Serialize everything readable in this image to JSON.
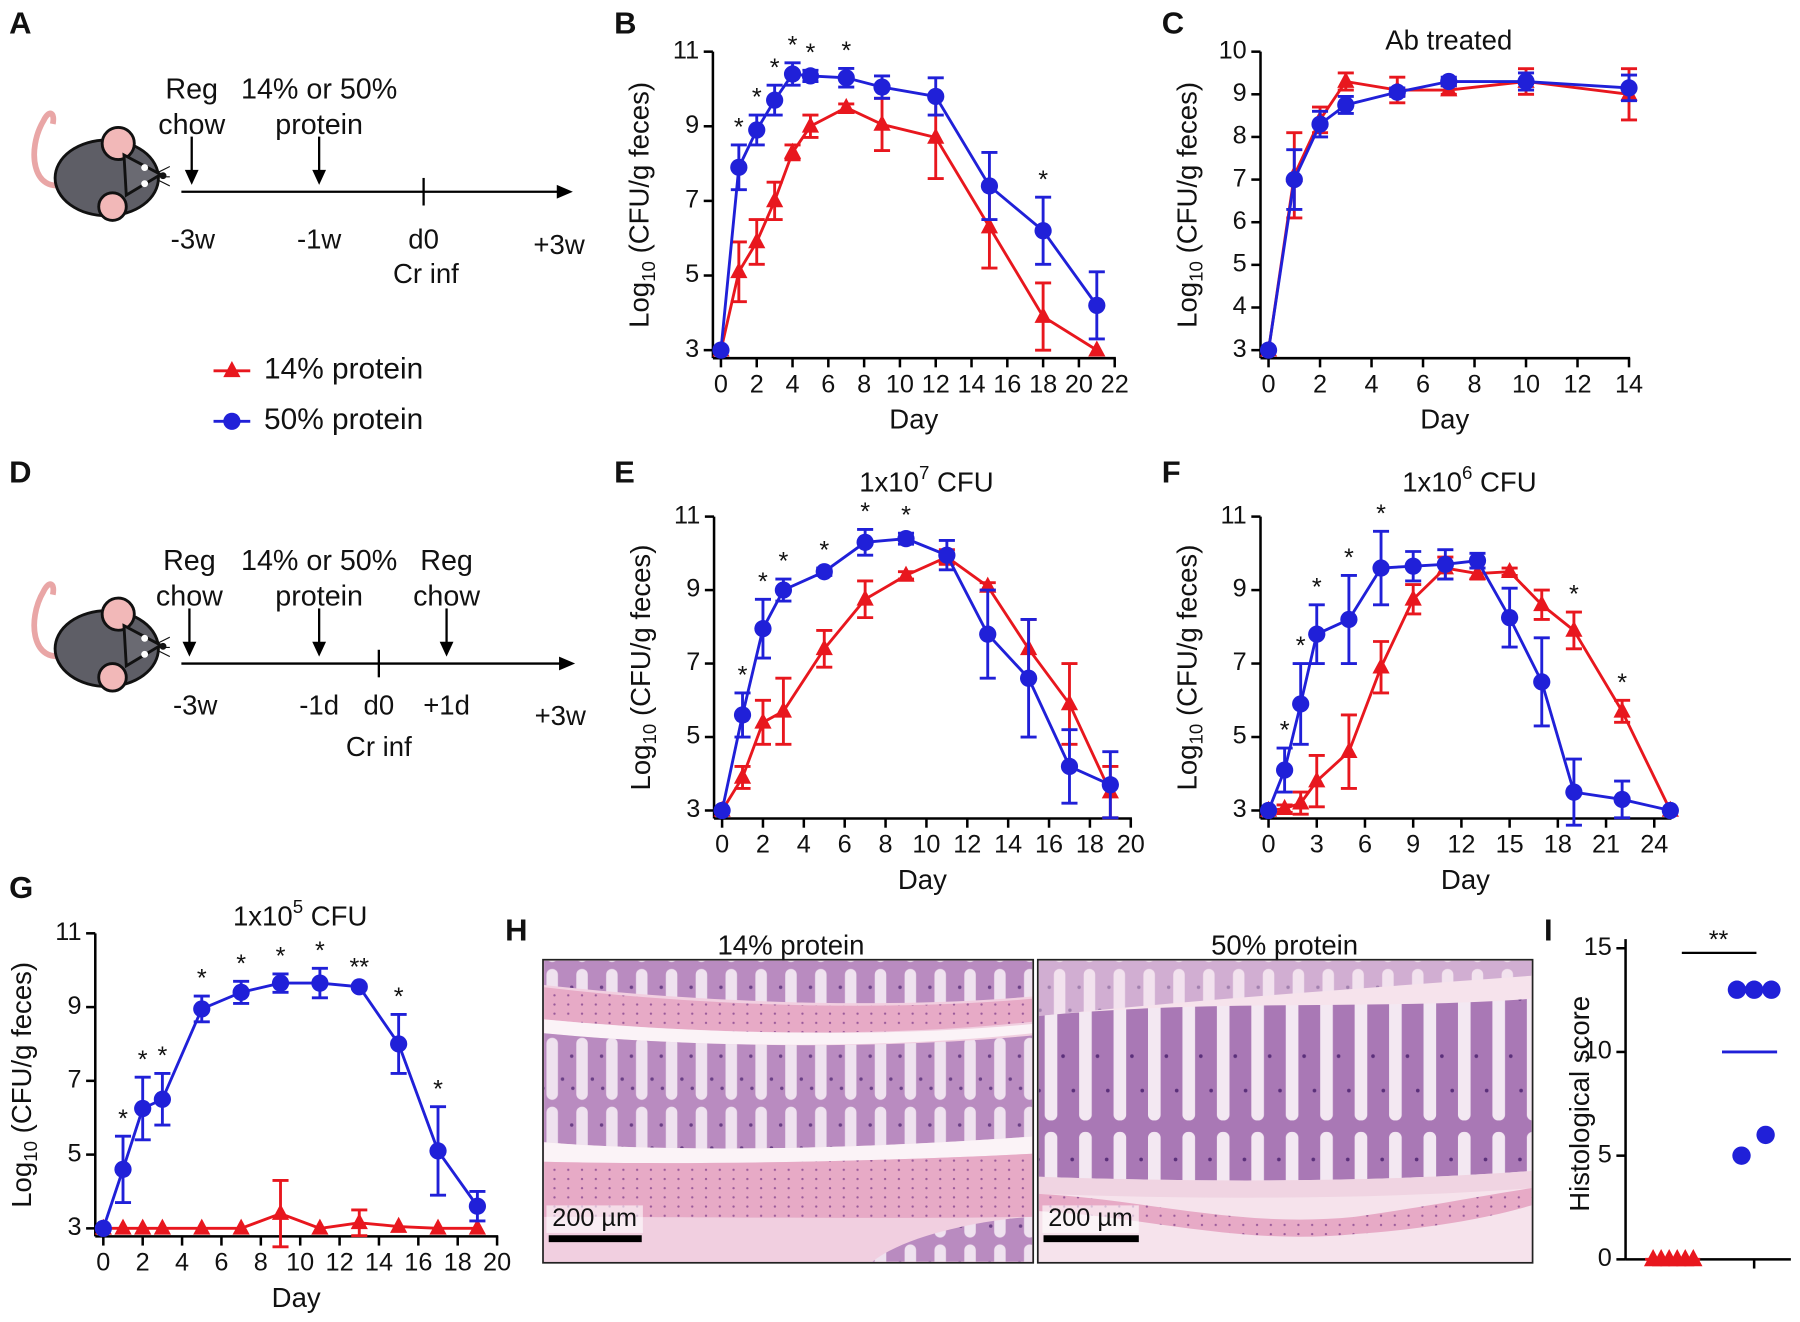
{
  "chart_data": [
    {
      "type": "line",
      "panel": "B",
      "x_label": "Day",
      "y_label": [
        "Log",
        "10",
        " (CFU/g feces)"
      ],
      "xlim": [
        0,
        22
      ],
      "xticks": [
        0,
        2,
        4,
        6,
        8,
        10,
        12,
        14,
        16,
        18,
        20,
        22
      ],
      "ylim": [
        3,
        11
      ],
      "yticks": [
        3,
        5,
        7,
        9,
        11
      ],
      "series": [
        {
          "name": "14% protein",
          "color": "#e8171e",
          "marker": "triangle",
          "x": [
            0,
            1,
            2,
            3,
            4,
            5,
            7,
            9,
            12,
            15,
            18,
            21
          ],
          "values": [
            3,
            5.1,
            5.9,
            7,
            8.3,
            9,
            9.5,
            9.05,
            8.7,
            6.3,
            3.9,
            3
          ],
          "errors": [
            0,
            0.8,
            0.6,
            0.5,
            0.2,
            0.3,
            0.1,
            0.7,
            1.1,
            1.1,
            0.9,
            0
          ]
        },
        {
          "name": "50% protein",
          "color": "#2020d8",
          "marker": "circle",
          "x": [
            0,
            1,
            2,
            3,
            4,
            5,
            7,
            9,
            12,
            15,
            18,
            21
          ],
          "values": [
            3,
            7.9,
            8.9,
            9.7,
            10.4,
            10.35,
            10.3,
            10.05,
            9.8,
            7.4,
            6.2,
            4.2
          ],
          "errors": [
            0,
            0.6,
            0.4,
            0.4,
            0.3,
            0.15,
            0.25,
            0.3,
            0.5,
            0.9,
            0.9,
            0.9
          ]
        }
      ],
      "significance": [
        {
          "x": 1,
          "label": "*"
        },
        {
          "x": 2,
          "label": "*"
        },
        {
          "x": 3,
          "label": "*"
        },
        {
          "x": 4,
          "label": "*"
        },
        {
          "x": 5,
          "label": "*"
        },
        {
          "x": 7,
          "label": "*"
        },
        {
          "x": 18,
          "label": "*"
        }
      ]
    },
    {
      "type": "line",
      "panel": "C",
      "title": [
        "Ab treated"
      ],
      "x_label": "Day",
      "y_label": [
        "Log",
        "10",
        " (CFU/g feces)"
      ],
      "xlim": [
        0,
        14
      ],
      "xticks": [
        0,
        2,
        4,
        6,
        8,
        10,
        12,
        14
      ],
      "ylim": [
        3,
        10
      ],
      "yticks": [
        3,
        4,
        5,
        6,
        7,
        8,
        9,
        10
      ],
      "series": [
        {
          "color": "#e8171e",
          "marker": "triangle",
          "x": [
            0,
            1,
            2,
            3,
            5,
            7,
            10,
            14
          ],
          "values": [
            3,
            7.1,
            8.4,
            9.3,
            9.1,
            9.1,
            9.3,
            9.0
          ],
          "errors": [
            0,
            1,
            0.3,
            0.2,
            0.3,
            0.1,
            0.3,
            0.6
          ]
        },
        {
          "color": "#2020d8",
          "marker": "circle",
          "x": [
            0,
            1,
            2,
            3,
            5,
            7,
            10,
            14
          ],
          "values": [
            3,
            7.0,
            8.3,
            8.75,
            9.05,
            9.3,
            9.3,
            9.15
          ],
          "errors": [
            0,
            0.7,
            0.3,
            0.2,
            0.1,
            0.1,
            0.2,
            0.3
          ]
        }
      ],
      "significance": []
    },
    {
      "type": "line",
      "panel": "E",
      "title": [
        "1x10",
        "7",
        " CFU"
      ],
      "x_label": "Day",
      "y_label": [
        "Log",
        "10",
        " (CFU/g feces)"
      ],
      "xlim": [
        0,
        20
      ],
      "xticks": [
        0,
        2,
        4,
        6,
        8,
        10,
        12,
        14,
        16,
        18,
        20
      ],
      "ylim": [
        3,
        11
      ],
      "yticks": [
        3,
        5,
        7,
        9,
        11
      ],
      "series": [
        {
          "color": "#e8171e",
          "marker": "triangle",
          "x": [
            0,
            1,
            2,
            3,
            5,
            7,
            9,
            11,
            13,
            15,
            17,
            19
          ],
          "values": [
            3,
            3.9,
            5.4,
            5.7,
            7.4,
            8.75,
            9.4,
            9.9,
            9.1,
            7.4,
            5.9,
            3.5
          ],
          "errors": [
            0,
            0.3,
            0.6,
            0.9,
            0.5,
            0.5,
            0.1,
            0.2,
            0.1,
            0.8,
            1.1,
            0.7
          ]
        },
        {
          "color": "#2020d8",
          "marker": "circle",
          "x": [
            0,
            1,
            2,
            3,
            5,
            7,
            9,
            11,
            13,
            15,
            17,
            19
          ],
          "values": [
            3,
            5.6,
            7.95,
            9.0,
            9.5,
            10.3,
            10.4,
            9.95,
            7.8,
            6.6,
            4.2,
            3.7
          ],
          "errors": [
            0,
            0.6,
            0.8,
            0.3,
            0.1,
            0.35,
            0.15,
            0.4,
            1.2,
            1.6,
            1.0,
            0.9
          ]
        }
      ],
      "significance": [
        {
          "x": 1,
          "label": "*"
        },
        {
          "x": 2,
          "label": "*"
        },
        {
          "x": 3,
          "label": "*"
        },
        {
          "x": 5,
          "label": "*"
        },
        {
          "x": 7,
          "label": "*"
        },
        {
          "x": 9,
          "label": "*"
        }
      ]
    },
    {
      "type": "line",
      "panel": "F",
      "title": [
        "1x10",
        "6",
        " CFU"
      ],
      "x_label": "Day",
      "y_label": [
        "Log",
        "10",
        " (CFU/g feces)"
      ],
      "xlim": [
        0,
        25
      ],
      "xticks": [
        0,
        3,
        6,
        9,
        12,
        15,
        18,
        21,
        24
      ],
      "ylim": [
        3,
        11
      ],
      "yticks": [
        3,
        5,
        7,
        9,
        11
      ],
      "series": [
        {
          "color": "#e8171e",
          "marker": "triangle",
          "x": [
            0,
            1,
            2,
            3,
            5,
            7,
            9,
            11,
            13,
            15,
            17,
            19,
            22,
            25
          ],
          "values": [
            3,
            3.05,
            3.2,
            3.8,
            4.6,
            6.9,
            8.75,
            9.6,
            9.45,
            9.5,
            8.6,
            7.9,
            5.7,
            3
          ],
          "errors": [
            0,
            0.1,
            0.3,
            0.7,
            1.0,
            0.7,
            0.4,
            0.3,
            0.15,
            0.1,
            0.4,
            0.5,
            0.3,
            0
          ]
        },
        {
          "color": "#2020d8",
          "marker": "circle",
          "x": [
            0,
            1,
            2,
            3,
            5,
            7,
            9,
            11,
            13,
            15,
            17,
            19,
            22,
            25
          ],
          "values": [
            3,
            4.1,
            5.9,
            7.8,
            8.2,
            9.6,
            9.65,
            9.7,
            9.8,
            8.25,
            6.5,
            3.5,
            3.3,
            3.0
          ],
          "errors": [
            0,
            0.6,
            1.1,
            0.8,
            1.2,
            1.0,
            0.4,
            0.4,
            0.2,
            0.8,
            1.2,
            0.9,
            0.5,
            0
          ]
        }
      ],
      "significance": [
        {
          "x": 1,
          "label": "*"
        },
        {
          "x": 2,
          "label": "*"
        },
        {
          "x": 3,
          "label": "*"
        },
        {
          "x": 5,
          "label": "*"
        },
        {
          "x": 7,
          "label": "*"
        },
        {
          "x": 19,
          "label": "*"
        },
        {
          "x": 22,
          "label": "*"
        }
      ]
    },
    {
      "type": "line",
      "panel": "G",
      "title": [
        "1x10",
        "5",
        " CFU"
      ],
      "x_label": "Day",
      "y_label": [
        "Log",
        "10",
        " (CFU/g feces)"
      ],
      "xlim": [
        0,
        20
      ],
      "xticks": [
        0,
        2,
        4,
        6,
        8,
        10,
        12,
        14,
        16,
        18,
        20
      ],
      "ylim": [
        3,
        11
      ],
      "yticks": [
        3,
        5,
        7,
        9,
        11
      ],
      "series": [
        {
          "color": "#e8171e",
          "marker": "triangle",
          "x": [
            0,
            1,
            2,
            3,
            5,
            7,
            9,
            11,
            13,
            15,
            17,
            19
          ],
          "values": [
            3,
            3,
            3,
            3,
            3,
            3,
            3.4,
            3,
            3.15,
            3.05,
            3,
            3
          ],
          "errors": [
            0,
            0,
            0,
            0,
            0,
            0,
            0.9,
            0,
            0.35,
            0,
            0,
            0
          ]
        },
        {
          "color": "#2020d8",
          "marker": "circle",
          "x": [
            0,
            1,
            2,
            3,
            5,
            7,
            9,
            11,
            13,
            15,
            17,
            19
          ],
          "values": [
            3,
            4.6,
            6.25,
            6.5,
            8.95,
            9.4,
            9.65,
            9.65,
            9.55,
            8.0,
            5.1,
            3.6
          ],
          "errors": [
            0,
            0.9,
            0.85,
            0.7,
            0.35,
            0.3,
            0.25,
            0.4,
            0.05,
            0.8,
            1.2,
            0.4
          ]
        }
      ],
      "significance": [
        {
          "x": 1,
          "label": "*"
        },
        {
          "x": 2,
          "label": "*"
        },
        {
          "x": 3,
          "label": "*"
        },
        {
          "x": 5,
          "label": "*"
        },
        {
          "x": 7,
          "label": "*"
        },
        {
          "x": 9,
          "label": "*"
        },
        {
          "x": 11,
          "label": "*"
        },
        {
          "x": 13,
          "label": "**"
        },
        {
          "x": 15,
          "label": "*"
        },
        {
          "x": 17,
          "label": "*"
        }
      ]
    },
    {
      "type": "scatter",
      "panel": "I",
      "y_label": "Histological score",
      "ylim": [
        0,
        15
      ],
      "yticks": [
        0,
        5,
        10,
        15
      ],
      "series": [
        {
          "color": "#e8171e",
          "marker": "triangle",
          "values": [
            0,
            0,
            0,
            0,
            0,
            0
          ],
          "mean": 0
        },
        {
          "color": "#2020d8",
          "marker": "circle",
          "values": [
            13,
            13,
            13,
            5,
            6
          ],
          "mean": 10
        }
      ],
      "significance": "**"
    }
  ],
  "diagrams": [
    {
      "panel": "A",
      "events": [
        [
          "Reg",
          "chow"
        ],
        [
          "14% or 50%",
          "protein"
        ]
      ],
      "ticks": [
        "-3w",
        "-1w",
        "d0",
        "+3w"
      ],
      "infection": "Cr inf"
    },
    {
      "panel": "D",
      "events": [
        [
          "Reg",
          "chow"
        ],
        [
          "14% or 50%",
          "protein"
        ],
        [
          "Reg",
          "chow"
        ]
      ],
      "ticks": [
        "-3w",
        "-1d",
        "d0",
        "+1d",
        "+3w"
      ],
      "infection": "Cr inf"
    }
  ],
  "histology": {
    "panel": "H",
    "images": [
      {
        "label": "14% protein",
        "scale_bar": "200 µm"
      },
      {
        "label": "50% protein",
        "scale_bar": "200 µm"
      }
    ]
  }
}
